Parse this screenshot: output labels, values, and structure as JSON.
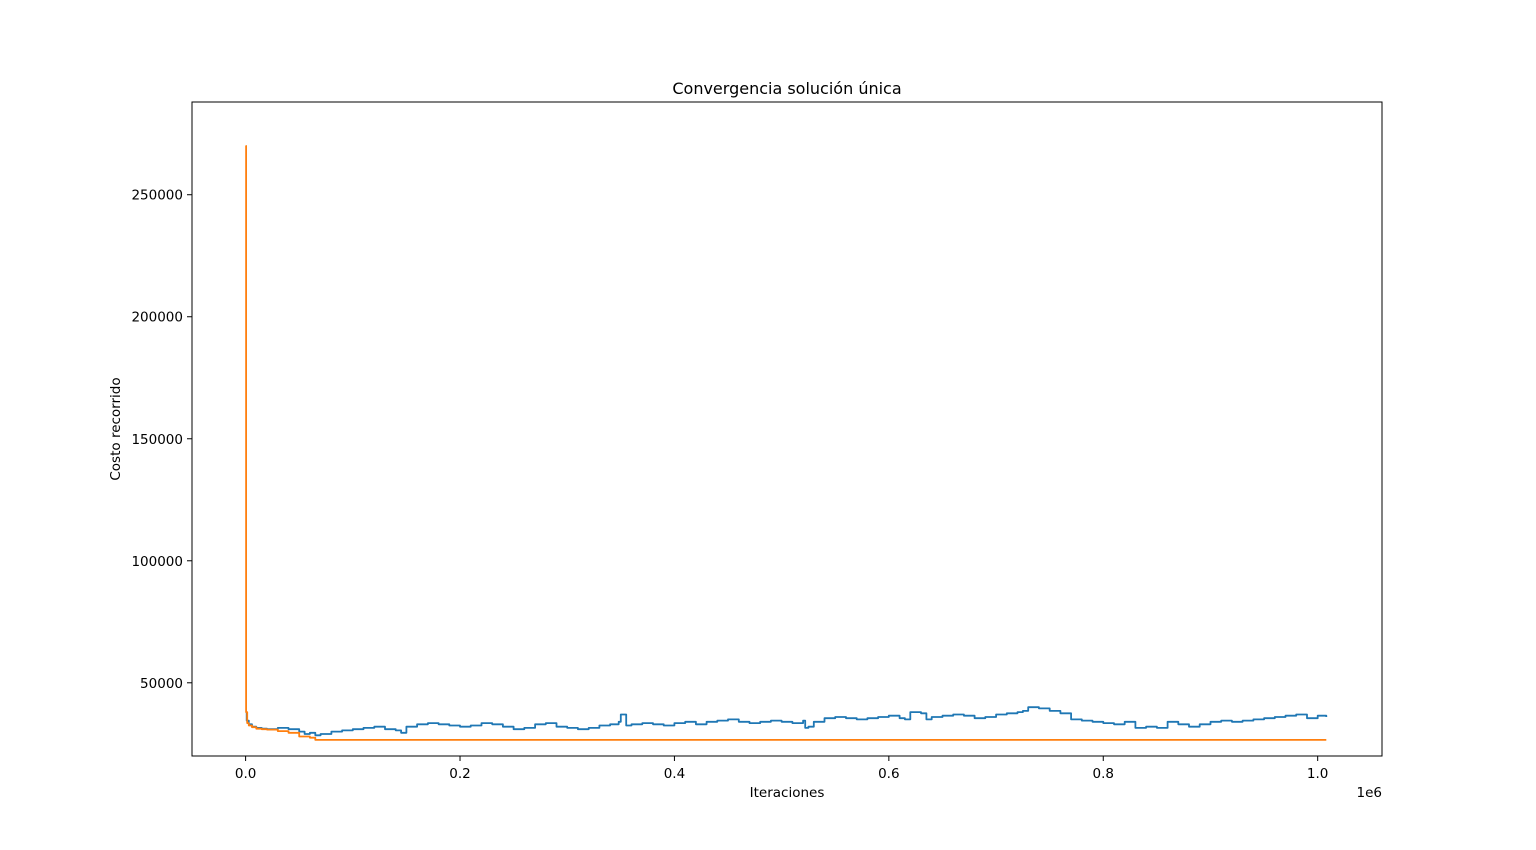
{
  "chart_data": {
    "type": "line",
    "title": "Convergencia solución única",
    "xlabel": "Iteraciones",
    "ylabel": "Costo recorrido",
    "x_offset_label": "1e6",
    "xlim": [
      -50000,
      1060000
    ],
    "ylim": [
      20000,
      288000
    ],
    "grid": false,
    "x_ticks": [
      0,
      200000,
      400000,
      600000,
      800000,
      1000000
    ],
    "x_tick_labels": [
      "0.0",
      "0.2",
      "0.4",
      "0.6",
      "0.8",
      "1.0"
    ],
    "y_ticks": [
      50000,
      100000,
      150000,
      200000,
      250000
    ],
    "y_tick_labels": [
      "50000",
      "100000",
      "150000",
      "200000",
      "250000"
    ],
    "series": [
      {
        "color": "#1f77b4",
        "x": [
          0,
          1000,
          3000,
          6000,
          10000,
          15000,
          20000,
          30000,
          40000,
          50000,
          55000,
          60000,
          65000,
          70000,
          80000,
          90000,
          100000,
          110000,
          120000,
          130000,
          140000,
          145000,
          150000,
          160000,
          170000,
          180000,
          190000,
          200000,
          210000,
          220000,
          230000,
          240000,
          250000,
          260000,
          270000,
          280000,
          290000,
          300000,
          310000,
          320000,
          330000,
          340000,
          348000,
          350000,
          355000,
          360000,
          370000,
          380000,
          390000,
          400000,
          410000,
          420000,
          430000,
          440000,
          450000,
          460000,
          470000,
          480000,
          490000,
          500000,
          510000,
          520000,
          522000,
          525000,
          530000,
          540000,
          550000,
          560000,
          570000,
          580000,
          590000,
          600000,
          610000,
          615000,
          620000,
          630000,
          635000,
          640000,
          650000,
          660000,
          670000,
          680000,
          690000,
          700000,
          710000,
          720000,
          725000,
          730000,
          740000,
          750000,
          760000,
          770000,
          780000,
          790000,
          800000,
          810000,
          820000,
          830000,
          840000,
          850000,
          860000,
          870000,
          880000,
          890000,
          900000,
          910000,
          920000,
          930000,
          940000,
          950000,
          960000,
          970000,
          980000,
          990000,
          1000000,
          1008000
        ],
        "y": [
          38000,
          34500,
          33000,
          32000,
          31500,
          31200,
          31000,
          31500,
          31000,
          30000,
          29000,
          29500,
          28500,
          29000,
          30000,
          30500,
          31000,
          31500,
          32000,
          31000,
          30500,
          29500,
          32000,
          33000,
          33500,
          33000,
          32500,
          32000,
          32500,
          33500,
          33000,
          32000,
          31000,
          31500,
          33000,
          33500,
          32000,
          31500,
          31000,
          31500,
          32500,
          33000,
          34000,
          37000,
          32500,
          33000,
          33500,
          33000,
          32500,
          33500,
          34000,
          33000,
          34000,
          34500,
          35000,
          34000,
          33500,
          34000,
          34500,
          34000,
          33500,
          34500,
          31500,
          32000,
          34000,
          35500,
          36000,
          35500,
          35000,
          35500,
          36000,
          36500,
          35500,
          35000,
          38000,
          37500,
          35000,
          36000,
          36500,
          37000,
          36500,
          35500,
          36000,
          37000,
          37500,
          38000,
          38500,
          40000,
          39500,
          38500,
          37500,
          35000,
          34500,
          34000,
          33500,
          33000,
          34000,
          31500,
          32000,
          31500,
          34000,
          33000,
          32000,
          33000,
          34000,
          34500,
          34000,
          34500,
          35000,
          35500,
          36000,
          36500,
          37000,
          35500,
          36500,
          36000
        ]
      },
      {
        "color": "#ff7f0e",
        "x": [
          0,
          500,
          1500,
          3000,
          6000,
          10000,
          15000,
          20000,
          30000,
          40000,
          50000,
          60000,
          65000,
          100000,
          300000,
          600000,
          1008000
        ],
        "y": [
          270000,
          38000,
          33500,
          32500,
          31800,
          31200,
          31000,
          30800,
          30200,
          29500,
          28000,
          27500,
          26600,
          26600,
          26600,
          26600,
          26600
        ]
      }
    ]
  }
}
